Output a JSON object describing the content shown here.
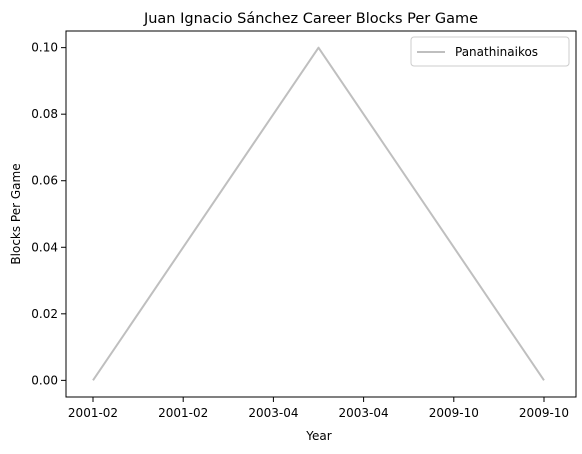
{
  "chart_data": {
    "type": "line",
    "title": "Juan Ignacio Sánchez Career Blocks Per Game",
    "xlabel": "Year",
    "ylabel": "Blocks Per Game",
    "x_tick_labels": [
      "2001-02",
      "2001-02",
      "2003-04",
      "2003-04",
      "2009-10",
      "2009-10"
    ],
    "y_ticks": [
      0.0,
      0.02,
      0.04,
      0.06,
      0.08,
      0.1
    ],
    "y_tick_labels": [
      "0.00",
      "0.02",
      "0.04",
      "0.06",
      "0.08",
      "0.10"
    ],
    "ylim": [
      -0.005,
      0.105
    ],
    "x": [
      "2001-02",
      "2003-04",
      "2009-10"
    ],
    "series": [
      {
        "name": "Panathinaikos",
        "color": "#bfbfbf",
        "values": [
          0.0,
          0.1,
          0.0
        ]
      }
    ],
    "legend": "top-right",
    "grid": false
  }
}
